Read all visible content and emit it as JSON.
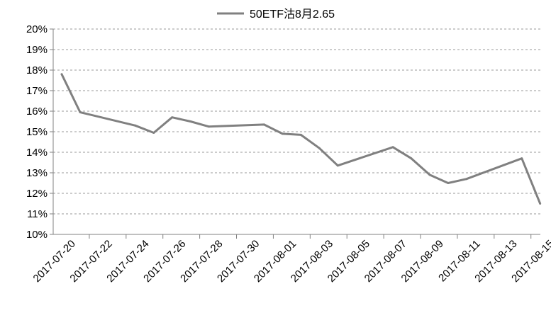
{
  "chart_data": {
    "type": "line",
    "title": "",
    "xlabel": "",
    "ylabel": "",
    "ylim": [
      0.1,
      0.2
    ],
    "y_ticks": [
      "10%",
      "11%",
      "12%",
      "13%",
      "14%",
      "15%",
      "16%",
      "17%",
      "18%",
      "19%",
      "20%"
    ],
    "x_ticks": [
      "2017-07-20",
      "2017-07-22",
      "2017-07-24",
      "2017-07-26",
      "2017-07-28",
      "2017-07-30",
      "2017-08-01",
      "2017-08-03",
      "2017-08-05",
      "2017-08-07",
      "2017-08-09",
      "2017-08-11",
      "2017-08-13",
      "2017-08-15"
    ],
    "grid": "horizontal dashed",
    "legend_position": "top",
    "series": [
      {
        "name": "50ETF沽8月2.65",
        "color": "#808080",
        "points": [
          {
            "x": "2017-07-20",
            "y": 0.178
          },
          {
            "x": "2017-07-21",
            "y": 0.1595
          },
          {
            "x": "2017-07-24",
            "y": 0.153
          },
          {
            "x": "2017-07-25",
            "y": 0.1495
          },
          {
            "x": "2017-07-26",
            "y": 0.157
          },
          {
            "x": "2017-07-27",
            "y": 0.155
          },
          {
            "x": "2017-07-28",
            "y": 0.1525
          },
          {
            "x": "2017-07-31",
            "y": 0.1535
          },
          {
            "x": "2017-08-01",
            "y": 0.149
          },
          {
            "x": "2017-08-02",
            "y": 0.1485
          },
          {
            "x": "2017-08-03",
            "y": 0.142
          },
          {
            "x": "2017-08-04",
            "y": 0.1335
          },
          {
            "x": "2017-08-07",
            "y": 0.1425
          },
          {
            "x": "2017-08-08",
            "y": 0.137
          },
          {
            "x": "2017-08-09",
            "y": 0.129
          },
          {
            "x": "2017-08-10",
            "y": 0.125
          },
          {
            "x": "2017-08-11",
            "y": 0.127
          },
          {
            "x": "2017-08-14",
            "y": 0.137
          },
          {
            "x": "2017-08-15",
            "y": 0.115
          }
        ]
      }
    ]
  }
}
